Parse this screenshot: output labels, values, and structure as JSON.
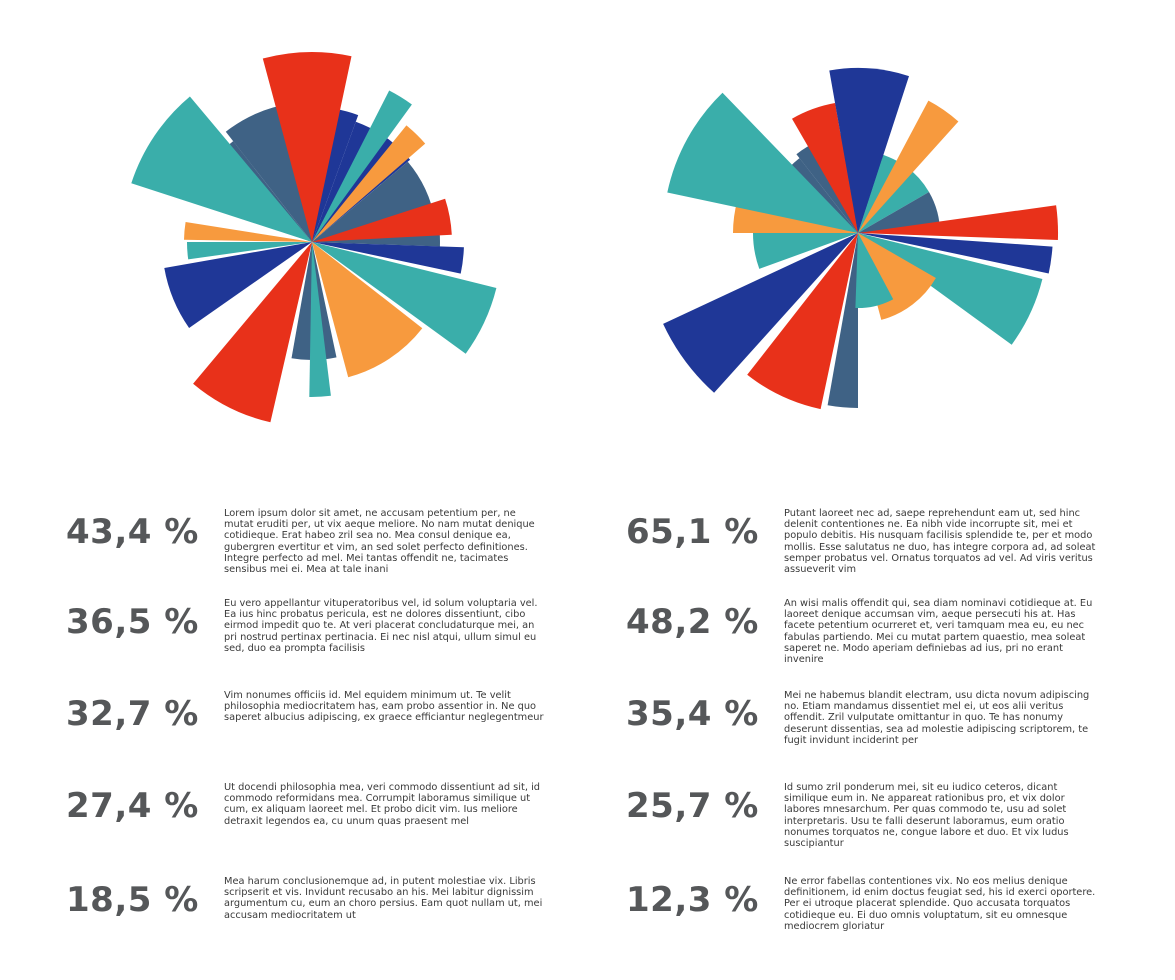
{
  "chart_data": [
    {
      "type": "pie",
      "variant": "polar-area",
      "title": "",
      "colors_used": [
        "#1f3797",
        "#e8311a",
        "#3aaeaa",
        "#f79a3e",
        "#3f6285"
      ],
      "series": []
    },
    {
      "type": "pie",
      "variant": "polar-area",
      "title": "",
      "colors_used": [
        "#1f3797",
        "#e8311a",
        "#3aaeaa",
        "#f79a3e",
        "#3f6285"
      ],
      "series": []
    }
  ],
  "stats": {
    "left": [
      {
        "value": "43,4 %",
        "text": "Lorem ipsum dolor sit amet, ne accusam petentium per, ne mutat eruditi per, ut vix aeque meliore. No nam mutat denique cotidieque. Erat habeo zril sea no. Mea consul denique ea, gubergren evertitur et vim, an sed solet perfecto definitiones. Integre perfecto ad mel. Mei tantas offendit ne, tacimates sensibus mei ei. Mea at tale inani"
      },
      {
        "value": "36,5 %",
        "text": "Eu vero appellantur vituperatoribus vel, id solum voluptaria vel. Ea ius hinc probatus pericula, est ne dolores dissentiunt, cibo eirmod impedit quo te. At veri placerat concludaturque mei, an pri nostrud pertinax pertinacia. Ei nec nisl atqui, ullum simul eu sed, duo ea prompta facilisis"
      },
      {
        "value": "32,7 %",
        "text": "Vim nonumes officiis id. Mel equidem minimum ut. Te velit philosophia mediocritatem has, eam probo assentior in. Ne quo saperet albucius adipiscing, ex graece efficiantur neglegentmeur"
      },
      {
        "value": "27,4 %",
        "text": "Ut docendi philosophia mea, veri commodo dissentiunt ad sit, id commodo reformidans mea. Corrumpit laboramus similique ut cum, ex aliquam laoreet mel. Et probo dicit vim. Ius meliore detraxit legendos ea, cu unum quas praesent mel"
      },
      {
        "value": "18,5 %",
        "text": "Mea harum conclusionemque ad, in putent molestiae vix. Libris scripserit et vis. Invidunt recusabo an his. Mei labitur dignissim argumentum cu, eum an choro persius. Eam quot nullam ut, mei accusam mediocritatem ut"
      }
    ],
    "right": [
      {
        "value": "65,1 %",
        "text": "Putant laoreet nec ad, saepe reprehendunt eam ut, sed hinc delenit contentiones ne. Ea nibh vide incorrupte sit, mei et populo debitis. His nusquam facilisis splendide te, per et modo mollis. Esse salutatus ne duo, has integre corpora ad, ad soleat semper probatus vel. Ornatus torquatos ad vel. Ad viris veritus assueverit vim"
      },
      {
        "value": "48,2 %",
        "text": "An wisi malis offendit qui, sea diam nominavi cotidieque at. Eu laoreet denique accumsan vim, aeque persecuti his at. Has facete petentium ocurreret et, veri tamquam mea eu, eu nec fabulas partiendo. Mei cu mutat partem quaestio, mea soleat saperet ne. Modo aperiam definiebas ad ius, pri no erant invenire"
      },
      {
        "value": "35,4 %",
        "text": "Mei ne habemus blandit electram, usu dicta novum adipiscing no. Etiam mandamus dissentiet mel ei, ut eos alii veritus offendit. Zril vulputate omittantur in quo. Te has nonumy deserunt dissentias, sea ad molestie adipiscing scriptorem, te fugit invidunt inciderint per"
      },
      {
        "value": "25,7 %",
        "text": "Id sumo zril ponderum mei, sit eu iudico ceteros, dicant similique eum in. Ne appareat rationibus pro, et vix dolor labores mnesarchum. Per quas commodo te, usu ad solet interpretaris. Usu te falli deserunt laboramus, eum oratio nonumes torquatos ne, congue labore et duo. Et vix ludus suscipiantur"
      },
      {
        "value": "12,3 %",
        "text": "Ne error fabellas contentiones vix. No eos melius denique definitionem, id enim doctus feugiat sed, his id exerci oportere. Per ei utroque placerat splendide. Quo accusata torquatos cotidieque eu. Ei duo omnis voluptatum, sit eu omnesque mediocrem gloriatur"
      }
    ]
  }
}
